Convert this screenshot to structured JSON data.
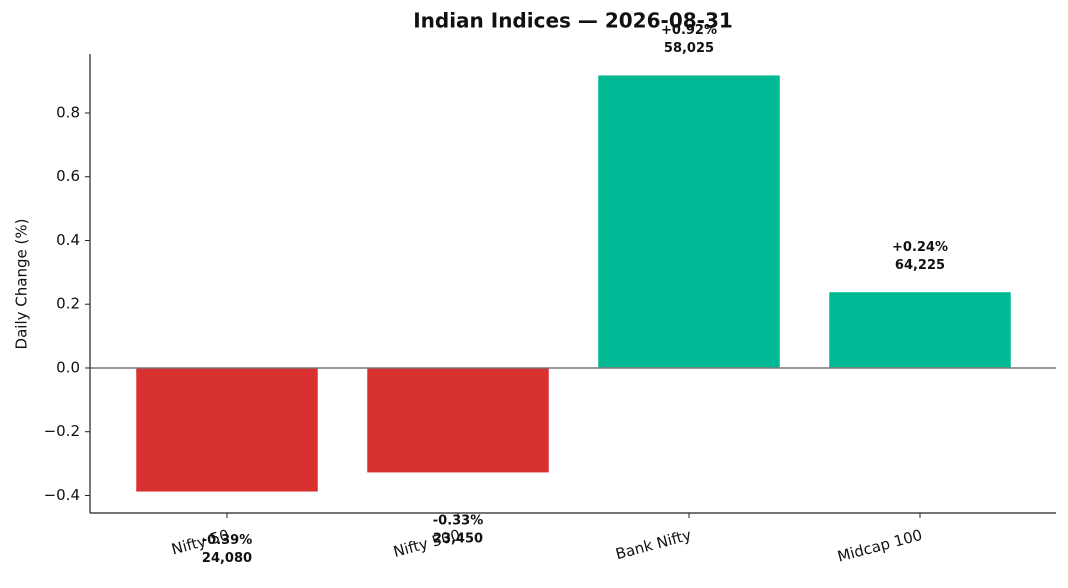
{
  "chart_data": {
    "type": "bar",
    "title": "Indian Indices — 2026-08-31",
    "ylabel": "Daily Change (%)",
    "categories": [
      "Nifty 50",
      "Nifty 500",
      "Bank Nifty",
      "Midcap 100"
    ],
    "values": [
      -0.39,
      -0.33,
      0.92,
      0.24
    ],
    "value_labels": [
      "-0.39%",
      "-0.33%",
      "+0.92%",
      "+0.24%"
    ],
    "levels": [
      {
        "value": 24080,
        "label": "24,080"
      },
      {
        "value": 23450,
        "label": "23,450"
      },
      {
        "value": 58025,
        "label": "58,025"
      },
      {
        "value": 64225,
        "label": "64,225"
      }
    ],
    "colors": {
      "negative": "#d93030",
      "positive": "#00b894"
    },
    "ylim": [
      -0.455,
      0.985
    ],
    "yticks": [
      {
        "value": -0.4,
        "label": "−0.4"
      },
      {
        "value": -0.2,
        "label": "−0.2"
      },
      {
        "value": 0.0,
        "label": "0.0"
      },
      0.2,
      0.4,
      0.6,
      0.8
    ],
    "grid": false
  }
}
